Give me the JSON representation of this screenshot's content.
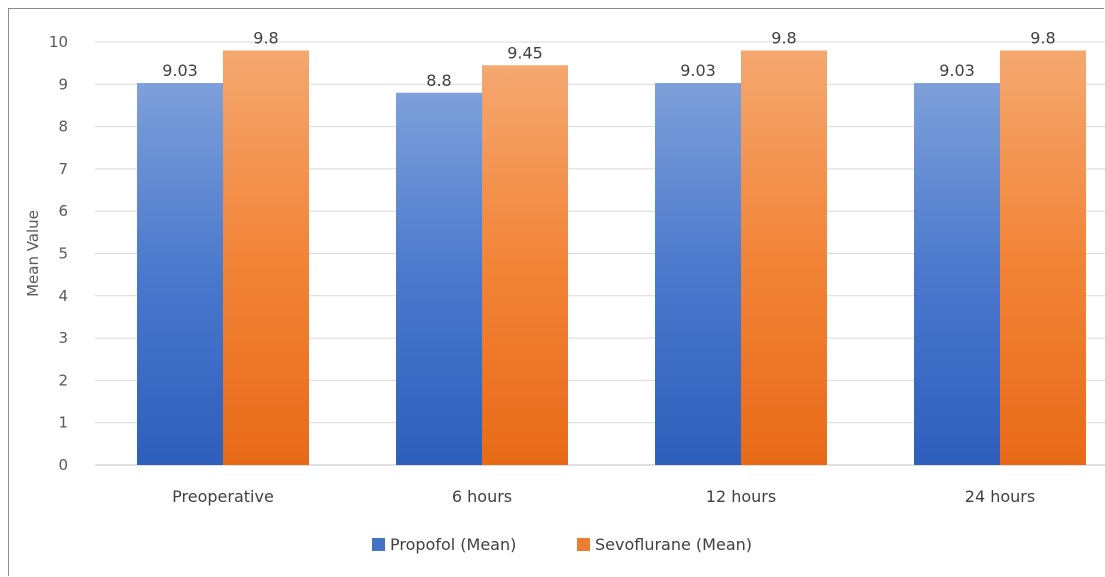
{
  "chart_data": {
    "type": "bar",
    "categories": [
      "Preoperative",
      "6 hours",
      "12 hours",
      "24 hours"
    ],
    "series": [
      {
        "name": "Propofol (Mean)",
        "values": [
          9.03,
          8.8,
          9.03,
          9.03
        ],
        "color": "#4472c4"
      },
      {
        "name": "Sevoflurane (Mean)",
        "values": [
          9.8,
          9.45,
          9.8,
          9.8
        ],
        "color": "#ed7d31"
      }
    ],
    "title": "",
    "xlabel": "",
    "ylabel": "Mean Value",
    "ylim": [
      0,
      10
    ],
    "yticks": [
      0,
      1,
      2,
      3,
      4,
      5,
      6,
      7,
      8,
      9,
      10
    ],
    "grid": true,
    "legend": "bottom-center"
  }
}
